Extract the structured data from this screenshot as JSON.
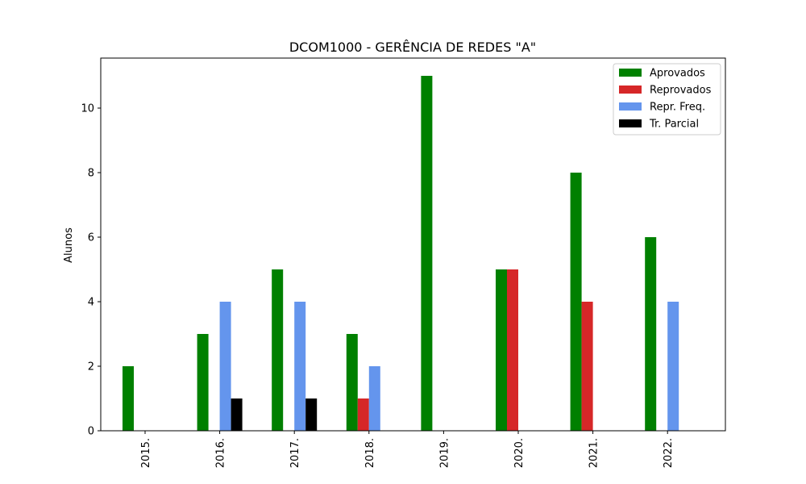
{
  "chart_data": {
    "type": "bar",
    "title": "DCOM1000 - GERÊNCIA DE REDES \"A\"",
    "xlabel": "",
    "ylabel": "Alunos",
    "categories": [
      "2015.",
      "2016.",
      "2017.",
      "2018.",
      "2019.",
      "2020.",
      "2021.",
      "2022."
    ],
    "ylim": [
      0,
      11.55
    ],
    "yticks": [
      0,
      2,
      4,
      6,
      8,
      10
    ],
    "grid": false,
    "legend_position": "top-right",
    "series": [
      {
        "name": "Aprovados",
        "color": "#008000",
        "values": [
          2,
          3,
          5,
          3,
          11,
          5,
          8,
          6
        ]
      },
      {
        "name": "Reprovados",
        "color": "#d62728",
        "values": [
          0,
          0,
          0,
          1,
          0,
          5,
          4,
          0
        ]
      },
      {
        "name": "Repr. Freq.",
        "color": "#6495ed",
        "values": [
          0,
          4,
          4,
          2,
          0,
          0,
          0,
          4
        ]
      },
      {
        "name": "Tr. Parcial",
        "color": "#000000",
        "values": [
          0,
          1,
          1,
          0,
          0,
          0,
          0,
          0
        ]
      }
    ]
  }
}
